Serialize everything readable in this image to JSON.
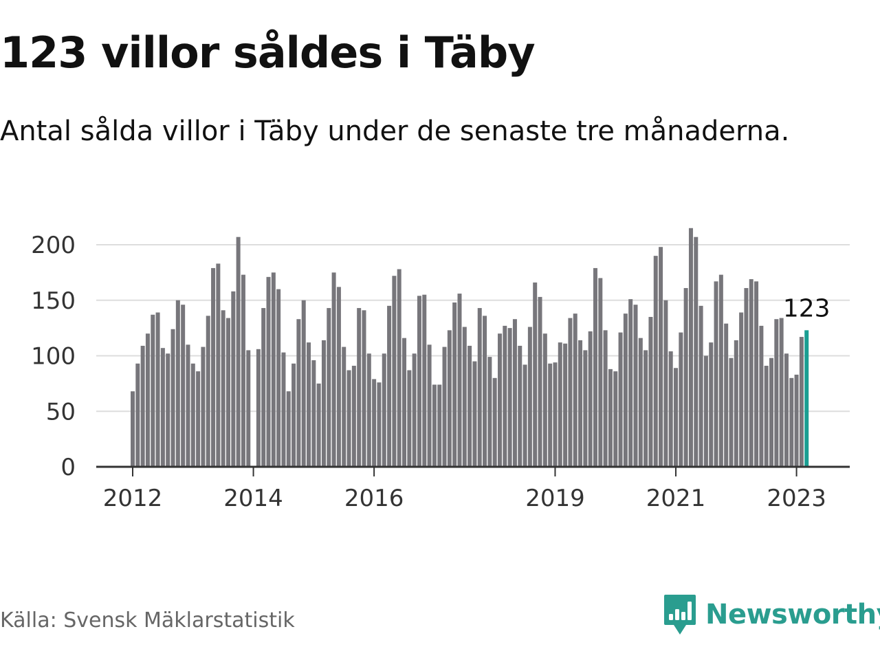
{
  "title": "123 villor såldes i Täby",
  "subtitle": "Antal sålda villor i Täby under de senaste tre månaderna.",
  "source": "Källa: Svensk Mäklarstatistik",
  "brand": "Newsworthy",
  "colors": {
    "bar": "#77767b",
    "highlight": "#1a9e92",
    "brand": "#2a9d8f",
    "grid": "#dddddd",
    "axis": "#333333"
  },
  "chart_data": {
    "type": "bar",
    "title": "123 villor såldes i Täby",
    "xlabel": "",
    "ylabel": "",
    "ylim": [
      0,
      220
    ],
    "yticks": [
      0,
      50,
      100,
      150,
      200
    ],
    "xticks": [
      {
        "label": "2012",
        "index": 0
      },
      {
        "label": "2014",
        "index": 24
      },
      {
        "label": "2016",
        "index": 48
      },
      {
        "label": "2019",
        "index": 84
      },
      {
        "label": "2021",
        "index": 108
      },
      {
        "label": "2023",
        "index": 132
      }
    ],
    "start": "2012-01",
    "highlight_label": "123",
    "values": [
      68,
      93,
      109,
      120,
      137,
      139,
      107,
      102,
      124,
      150,
      146,
      110,
      93,
      86,
      108,
      136,
      179,
      183,
      141,
      134,
      158,
      207,
      173,
      105,
      0,
      106,
      143,
      171,
      175,
      160,
      103,
      68,
      93,
      133,
      150,
      112,
      96,
      75,
      114,
      143,
      175,
      162,
      108,
      87,
      91,
      143,
      141,
      102,
      79,
      76,
      102,
      145,
      172,
      178,
      116,
      87,
      102,
      154,
      155,
      110,
      74,
      74,
      108,
      123,
      148,
      156,
      126,
      109,
      95,
      143,
      136,
      99,
      80,
      120,
      127,
      125,
      133,
      109,
      92,
      126,
      166,
      153,
      120,
      93,
      94,
      112,
      111,
      134,
      138,
      114,
      105,
      122,
      179,
      170,
      123,
      88,
      86,
      121,
      138,
      151,
      146,
      116,
      105,
      135,
      190,
      198,
      150,
      104,
      89,
      121,
      161,
      215,
      207,
      145,
      100,
      112,
      167,
      173,
      129,
      98,
      114,
      139,
      161,
      169,
      167,
      127,
      91,
      98,
      133,
      134,
      102,
      80,
      83,
      117,
      123
    ]
  }
}
